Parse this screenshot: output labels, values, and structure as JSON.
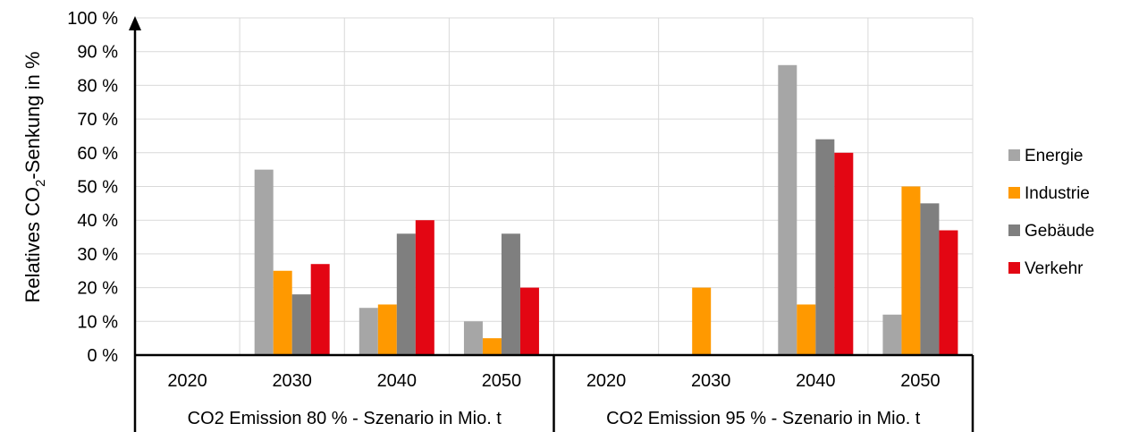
{
  "chart_data": {
    "type": "bar",
    "ylabel_main": "Relatives CO",
    "ylabel_sub": "2",
    "ylabel_rest": "-Senkung in %",
    "ylim": [
      0,
      100
    ],
    "yticks": [
      "0 %",
      "10 %",
      "20 %",
      "30 %",
      "40 %",
      "50 %",
      "60 %",
      "70 %",
      "80 %",
      "90 %",
      "100 %"
    ],
    "grid": true,
    "legend_position": "right",
    "groups": [
      {
        "label": "CO2 Emission 80 % - Szenario in Mio. t",
        "categories": [
          "2020",
          "2030",
          "2040",
          "2050"
        ]
      },
      {
        "label": "CO2 Emission 95 % - Szenario in Mio. t",
        "categories": [
          "2020",
          "2030",
          "2040",
          "2050"
        ]
      }
    ],
    "series": [
      {
        "name": "Energie",
        "color": "#a6a6a6",
        "values": [
          0,
          55,
          14,
          10,
          0,
          0,
          86,
          12
        ]
      },
      {
        "name": "Industrie",
        "color": "#ff9900",
        "values": [
          0,
          25,
          15,
          5,
          0,
          20,
          15,
          50
        ]
      },
      {
        "name": "Gebäude",
        "color": "#7f7f7f",
        "values": [
          0,
          18,
          36,
          36,
          0,
          0,
          64,
          45
        ]
      },
      {
        "name": "Verkehr",
        "color": "#e30613",
        "values": [
          0,
          27,
          40,
          20,
          0,
          0,
          60,
          37
        ]
      }
    ]
  }
}
